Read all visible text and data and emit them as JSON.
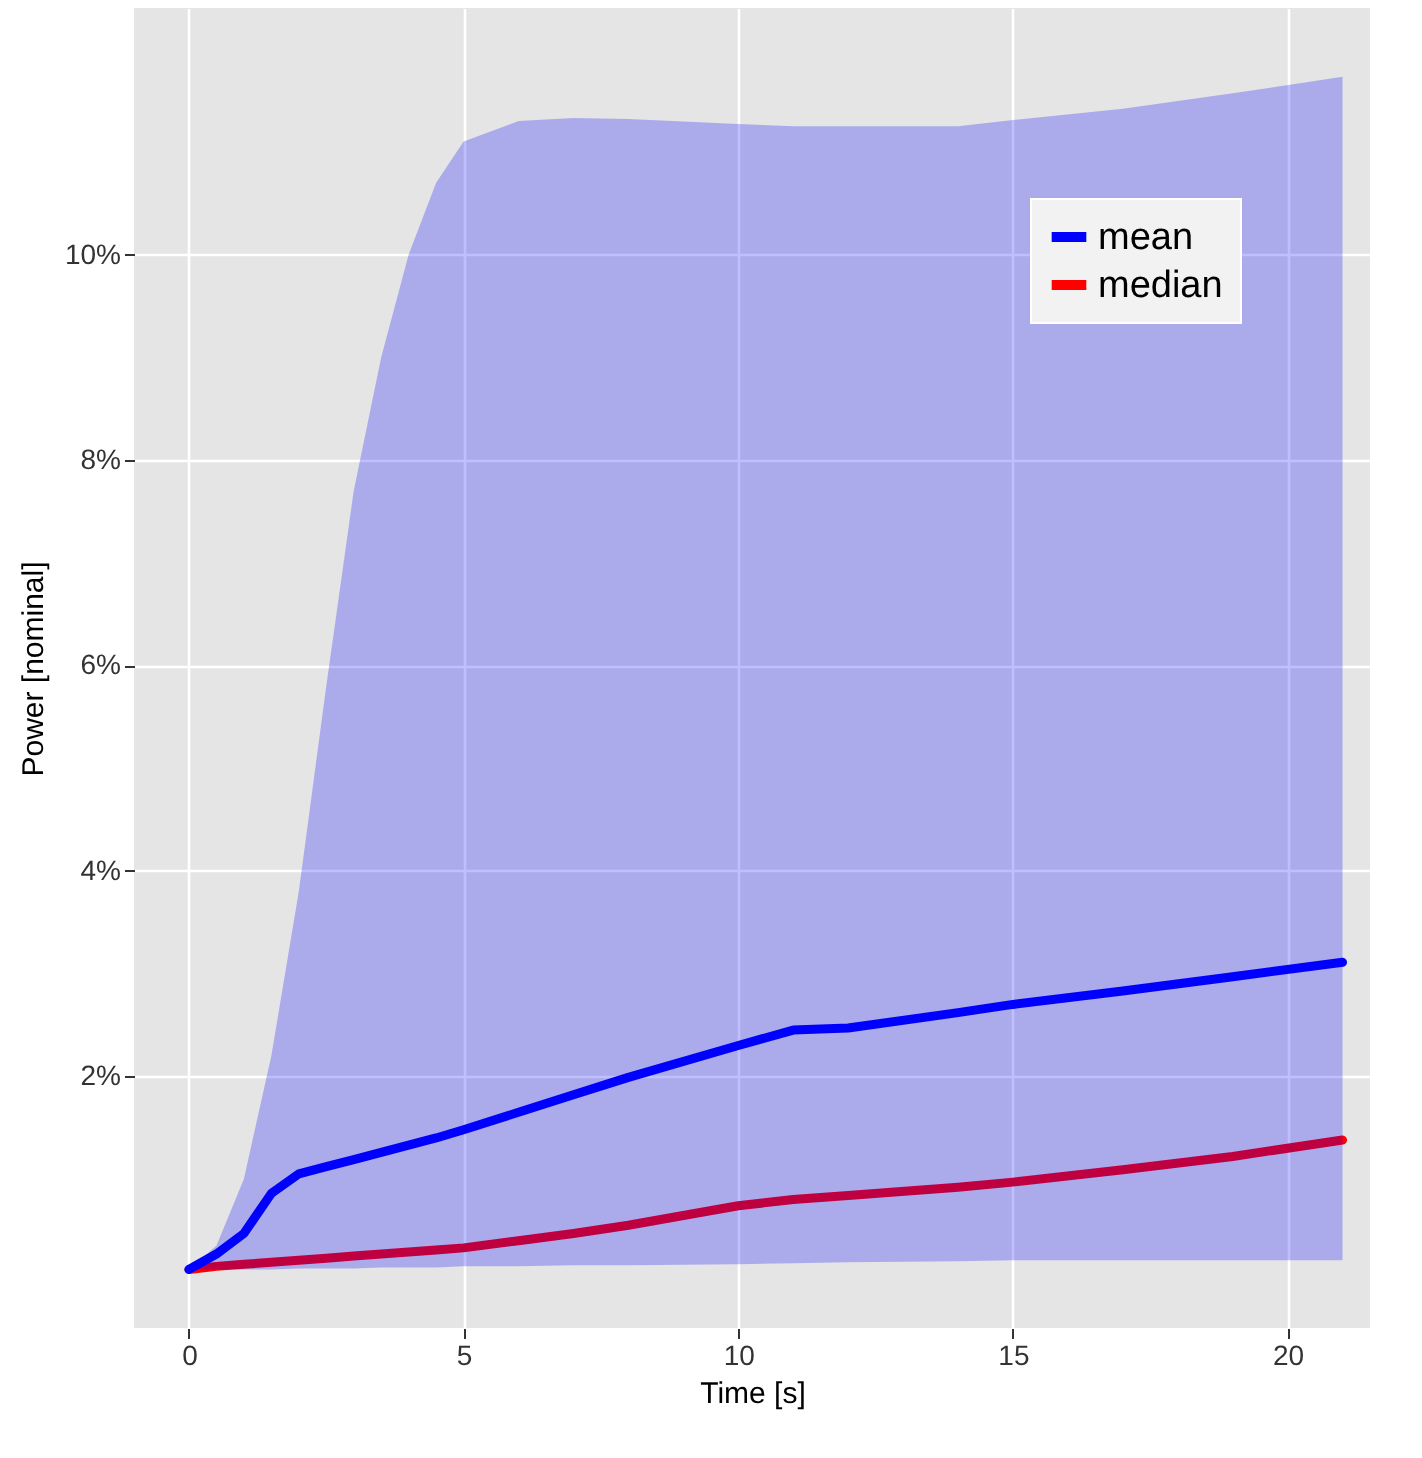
{
  "chart_data": {
    "type": "line",
    "xlabel": "Time [s]",
    "ylabel": "Power [nominal]",
    "x": [
      0,
      0.5,
      1,
      1.5,
      2,
      2.5,
      3,
      3.5,
      4,
      4.5,
      5,
      6,
      7,
      8,
      10,
      11,
      12,
      14,
      15,
      17,
      19,
      21
    ],
    "series": [
      {
        "name": "mean",
        "color": "#0000ff",
        "values": [
          0.12,
          0.27,
          0.47,
          0.86,
          1.05,
          1.12,
          1.19,
          1.26,
          1.33,
          1.4,
          1.48,
          1.65,
          1.82,
          1.99,
          2.3,
          2.45,
          2.47,
          2.62,
          2.7,
          2.83,
          2.97,
          3.11
        ],
        "lower": [
          0.12,
          0.12,
          0.12,
          0.12,
          0.13,
          0.13,
          0.13,
          0.14,
          0.14,
          0.14,
          0.15,
          0.15,
          0.16,
          0.16,
          0.17,
          0.18,
          0.19,
          0.2,
          0.21,
          0.21,
          0.21,
          0.21
        ],
        "upper": [
          0.12,
          0.35,
          1.0,
          2.2,
          3.8,
          5.8,
          7.7,
          9.0,
          10.0,
          10.7,
          11.1,
          11.3,
          11.33,
          11.32,
          11.27,
          11.25,
          11.25,
          11.25,
          11.31,
          11.42,
          11.57,
          11.73
        ]
      },
      {
        "name": "median",
        "color": "#ff0000",
        "values": [
          0.12,
          0.15,
          0.17,
          0.19,
          0.21,
          0.23,
          0.25,
          0.27,
          0.29,
          0.31,
          0.33,
          0.4,
          0.47,
          0.55,
          0.74,
          0.8,
          0.84,
          0.92,
          0.97,
          1.09,
          1.22,
          1.38
        ]
      }
    ],
    "xlim": [
      -1,
      21.5
    ],
    "xticks": [
      0,
      5,
      10,
      15,
      20
    ],
    "ylim": [
      -0.45,
      12.4
    ],
    "yticks": [
      {
        "value": 2,
        "label": "2%"
      },
      {
        "value": 4,
        "label": "4%"
      },
      {
        "value": 6,
        "label": "6%"
      },
      {
        "value": 8,
        "label": "8%"
      },
      {
        "value": 10,
        "label": "10%"
      }
    ],
    "grid": true,
    "legend": "top right",
    "marker": "none",
    "line_style": "solid"
  }
}
